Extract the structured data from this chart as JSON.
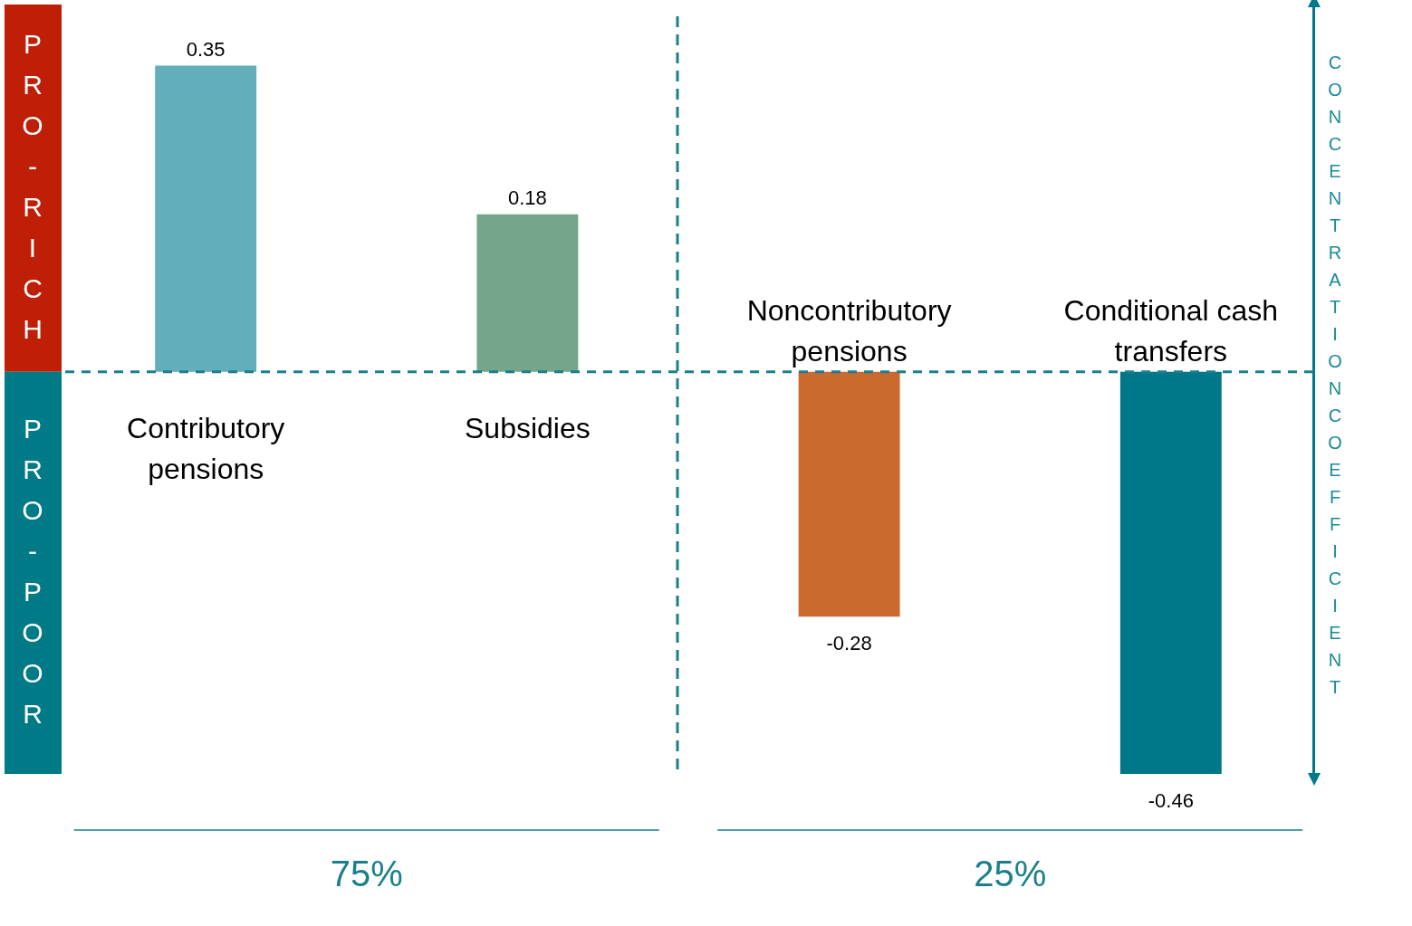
{
  "chart_data": {
    "type": "bar",
    "ylabel": "CONCENTRATION COEFFICIENT",
    "categories": [
      "Contributory pensions",
      "Subsidies",
      "Noncontributory pensions",
      "Conditional cash transfers"
    ],
    "values": [
      0.35,
      0.18,
      -0.28,
      -0.46
    ],
    "colors": [
      "#62aebb",
      "#74a68c",
      "#cb6a2e",
      "#007788"
    ],
    "data_labels": true,
    "ylim": [
      -0.46,
      0.42
    ],
    "ref_lines": [
      {
        "axis": "y",
        "value": 0,
        "color": "#1a7f8a",
        "line_style": "dashed"
      }
    ],
    "annotations": [
      "PRO-RICH",
      "PRO-POOR",
      "75%",
      "25%"
    ]
  }
}
